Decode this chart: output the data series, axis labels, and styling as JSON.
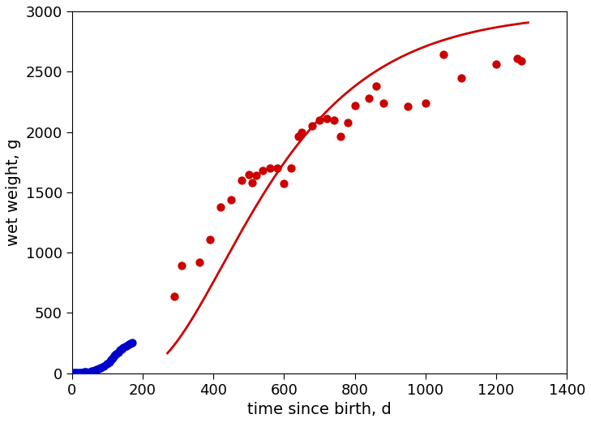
{
  "xlabel": "time since birth, d",
  "ylabel": "wet weight, g",
  "xlim": [
    0,
    1400
  ],
  "ylim": [
    0,
    3000
  ],
  "xticks": [
    0,
    200,
    400,
    600,
    800,
    1000,
    1200,
    1400
  ],
  "yticks": [
    0,
    500,
    1000,
    1500,
    2000,
    2500,
    3000
  ],
  "blue_x": [
    5,
    10,
    15,
    20,
    25,
    30,
    35,
    40,
    50,
    55,
    60,
    65,
    70,
    75,
    80,
    90,
    100,
    105,
    110,
    115,
    120,
    125,
    130,
    135,
    140,
    145,
    155,
    160,
    165,
    170
  ],
  "blue_y": [
    2,
    3,
    4,
    5,
    6,
    7,
    9,
    11,
    14,
    17,
    20,
    25,
    30,
    38,
    48,
    60,
    80,
    95,
    110,
    125,
    145,
    160,
    175,
    190,
    200,
    215,
    230,
    240,
    250,
    255
  ],
  "red_x": [
    290,
    310,
    360,
    390,
    420,
    450,
    480,
    500,
    510,
    520,
    540,
    560,
    580,
    600,
    620,
    640,
    650,
    680,
    700,
    720,
    740,
    760,
    780,
    800,
    840,
    860,
    880,
    950,
    1000,
    1050,
    1100,
    1200,
    1260,
    1270
  ],
  "red_y": [
    640,
    890,
    920,
    1110,
    1380,
    1440,
    1600,
    1650,
    1580,
    1640,
    1680,
    1700,
    1700,
    1570,
    1700,
    1960,
    2000,
    2050,
    2100,
    2110,
    2100,
    1960,
    2080,
    2220,
    2280,
    2380,
    2240,
    2210,
    2240,
    2640,
    2450,
    2560,
    2610,
    2590
  ],
  "curve_color": "#cc0000",
  "blue_color": "#0000cc",
  "red_color": "#cc0000",
  "dot_size": 55,
  "figwidth": 7.29,
  "figheight": 5.21,
  "dpi": 100
}
